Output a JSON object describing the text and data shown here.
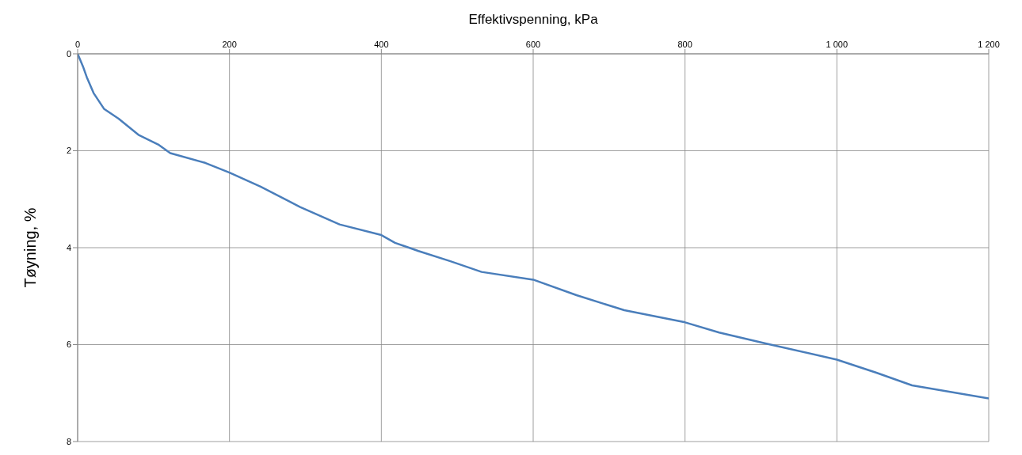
{
  "chart_data": {
    "type": "line",
    "xlabel": "Effektivspenning, kPa",
    "ylabel": "Tøyning, %",
    "xlim": [
      0,
      1200
    ],
    "xticks": [
      0,
      200,
      400,
      600,
      800,
      {
        "value": 1000,
        "label": "1 000"
      },
      {
        "value": 1200,
        "label": "1 200"
      }
    ],
    "ylim": [
      8,
      0
    ],
    "yticks": [
      0,
      2,
      4,
      6,
      8
    ],
    "grid": true,
    "legend": false,
    "marker": "none",
    "line_style": "solid",
    "x": [
      0,
      7,
      12,
      21,
      35,
      54,
      80,
      106,
      122,
      168,
      200,
      241,
      293,
      345,
      400,
      418,
      449,
      491,
      532,
      600,
      657,
      720,
      800,
      845,
      907,
      1000,
      1052,
      1099,
      1200
    ],
    "series": [
      {
        "color": "#4a7ebb",
        "values": [
          0,
          0.26,
          0.48,
          0.81,
          1.14,
          1.34,
          1.67,
          1.87,
          2.05,
          2.25,
          2.45,
          2.74,
          3.16,
          3.52,
          3.74,
          3.9,
          4.07,
          4.28,
          4.5,
          4.66,
          4.98,
          5.29,
          5.54,
          5.75,
          5.98,
          6.31,
          6.58,
          6.84,
          7.11
        ]
      }
    ]
  }
}
